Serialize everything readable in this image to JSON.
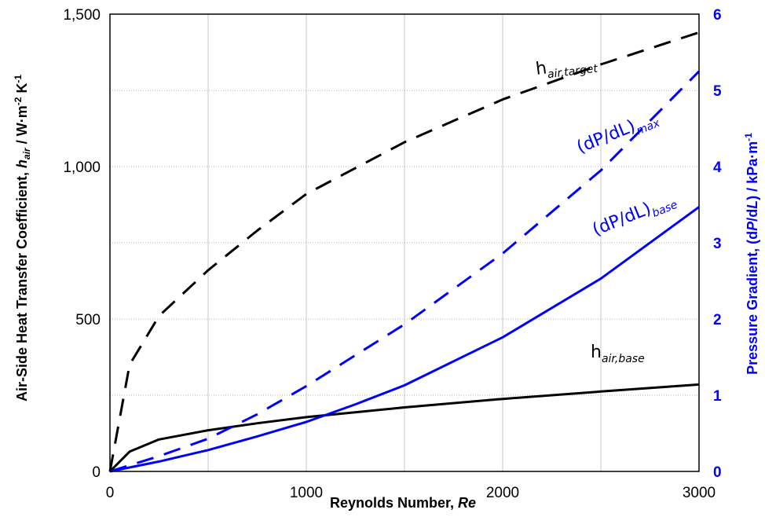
{
  "chart_data": {
    "type": "line",
    "xlabel": "Reynolds Number, Re",
    "ylabel_left": "Air-Side Heat Transfer Coefficient, h_air / W·m^-2 K^-1",
    "ylabel_right": "Pressure Gradient, (dP/dL) / kPa·m^-1",
    "xlim": [
      0,
      3000
    ],
    "ylim_left": [
      0,
      1500
    ],
    "ylim_right": [
      0,
      6
    ],
    "x_ticks": [
      "0",
      "1000",
      "2000",
      "3000"
    ],
    "y_left_ticks": [
      "0",
      "500",
      "1,000",
      "1,500"
    ],
    "y_right_ticks": [
      "0",
      "1",
      "2",
      "3",
      "4",
      "5",
      "6"
    ],
    "grid": true,
    "series": [
      {
        "name": "h_air,target",
        "axis": "left",
        "color": "#000000",
        "style": "dashed",
        "x": [
          0,
          100,
          250,
          500,
          750,
          1000,
          1500,
          2000,
          2500,
          3000
        ],
        "y": [
          0,
          350,
          510,
          660,
          790,
          910,
          1080,
          1220,
          1335,
          1440
        ]
      },
      {
        "name": "h_air,base",
        "axis": "left",
        "color": "#000000",
        "style": "solid",
        "x": [
          0,
          100,
          250,
          500,
          750,
          1000,
          1500,
          2000,
          2500,
          3000
        ],
        "y": [
          0,
          65,
          105,
          135,
          158,
          178,
          210,
          238,
          262,
          285
        ]
      },
      {
        "name": "(dP/dL)max",
        "axis": "right",
        "color": "#0000ff",
        "style": "dashed",
        "x": [
          0,
          250,
          500,
          750,
          1000,
          1500,
          2000,
          2500,
          3000
        ],
        "y": [
          0,
          0.2,
          0.43,
          0.75,
          1.12,
          1.93,
          2.86,
          3.95,
          5.25
        ]
      },
      {
        "name": "(dP/dL)base",
        "axis": "right",
        "color": "#0000ff",
        "style": "solid",
        "x": [
          0,
          250,
          500,
          750,
          1000,
          1250,
          1500,
          2000,
          2500,
          3000
        ],
        "y": [
          0,
          0.13,
          0.28,
          0.46,
          0.65,
          0.88,
          1.13,
          1.76,
          2.53,
          3.47
        ]
      }
    ],
    "annotations": [
      {
        "base": "h",
        "sub": "air,target",
        "color": "#000000",
        "style": "normal",
        "rotate": -7
      },
      {
        "base": "h",
        "sub": "air,base",
        "color": "#000000",
        "style": "normal",
        "rotate": 0
      },
      {
        "base": "(dP/dL)",
        "sub": "max",
        "color": "#0000ff",
        "style": "normal",
        "rotate": -22
      },
      {
        "base": "(dP/dL)",
        "sub": "base",
        "color": "#0000ff",
        "style": "normal",
        "rotate": -22
      }
    ]
  }
}
